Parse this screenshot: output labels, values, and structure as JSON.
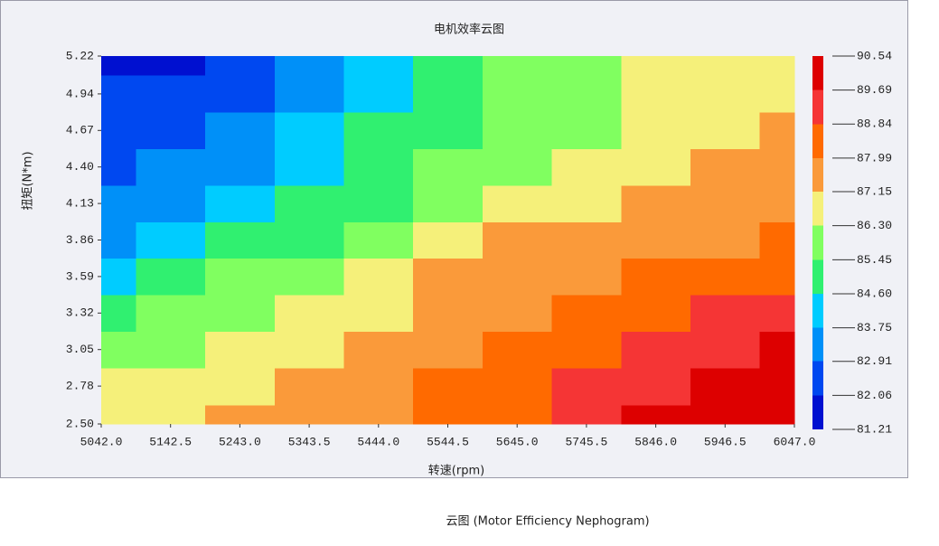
{
  "chart_data": {
    "type": "contour",
    "title": "电机效率云图",
    "xlabel": "转速(rpm)",
    "ylabel": "扭矩(N*m)",
    "x": [
      5042,
      5142.5,
      5243,
      5343.5,
      5444,
      5544.5,
      5645,
      5745.5,
      5846,
      5946.5,
      6047
    ],
    "y": [
      2.5,
      2.78,
      3.05,
      3.32,
      3.59,
      3.86,
      4.13,
      4.4,
      4.67,
      4.94,
      5.22
    ],
    "z": [
      [
        86.9,
        87.0,
        87.2,
        87.5,
        87.8,
        88.2,
        88.6,
        89.1,
        89.7,
        90.0,
        89.9
      ],
      [
        86.4,
        86.7,
        87.0,
        87.3,
        87.6,
        88.0,
        88.4,
        88.9,
        89.3,
        89.9,
        90.1
      ],
      [
        85.6,
        86.1,
        86.6,
        86.9,
        87.3,
        87.6,
        88.0,
        88.4,
        88.9,
        89.3,
        89.8
      ],
      [
        84.9,
        85.5,
        86.0,
        86.5,
        86.9,
        87.4,
        87.7,
        88.1,
        88.5,
        88.9,
        89.3
      ],
      [
        84.2,
        84.7,
        85.5,
        85.9,
        86.5,
        87.2,
        87.4,
        87.7,
        88.0,
        88.3,
        88.6
      ],
      [
        83.5,
        84.0,
        84.7,
        85.2,
        85.8,
        86.5,
        87.2,
        87.4,
        87.6,
        87.9,
        88.1
      ],
      [
        83.0,
        83.5,
        84.0,
        84.7,
        85.2,
        85.9,
        86.5,
        86.8,
        87.2,
        87.5,
        87.8
      ],
      [
        82.7,
        83.1,
        83.6,
        84.2,
        84.9,
        85.6,
        86.0,
        86.4,
        86.9,
        87.3,
        87.5
      ],
      [
        82.5,
        82.8,
        83.2,
        83.9,
        84.7,
        85.2,
        85.7,
        86.2,
        86.6,
        87.0,
        87.3
      ],
      [
        82.1,
        82.4,
        82.8,
        83.3,
        84.0,
        84.9,
        85.7,
        86.1,
        86.5,
        86.8,
        87.0
      ],
      [
        81.6,
        81.7,
        82.5,
        83.3,
        84.2,
        85.0,
        85.9,
        86.0,
        86.6,
        86.7,
        86.9
      ]
    ],
    "xlim": [
      5042,
      6047
    ],
    "ylim": [
      2.5,
      5.22
    ],
    "xticks": [
      {
        "value": 5042,
        "label": "5042.0"
      },
      5142.5,
      {
        "value": 5243,
        "label": "5243.0"
      },
      5343.5,
      {
        "value": 5444,
        "label": "5444.0"
      },
      5544.5,
      {
        "value": 5645,
        "label": "5645.0"
      },
      5745.5,
      {
        "value": 5846,
        "label": "5846.0"
      },
      5946.5,
      {
        "value": 6047,
        "label": "6047.0"
      }
    ],
    "yticks": [
      {
        "value": 2.5,
        "label": "2.50"
      },
      2.78,
      3.05,
      3.32,
      3.59,
      3.86,
      4.13,
      {
        "value": 4.4,
        "label": "4.40"
      },
      4.67,
      4.94,
      5.22
    ],
    "levels": [
      81.21,
      82.06,
      82.91,
      83.75,
      {
        "value": 84.6,
        "label": "84.60"
      },
      85.45,
      {
        "value": 86.3,
        "label": "86.30"
      },
      87.15,
      87.99,
      88.84,
      89.69,
      90.54
    ],
    "colors": [
      "#0010d0",
      "#0048f0",
      "#0090f8",
      "#00ccff",
      "#30f070",
      "#80ff60",
      "#f5f07a",
      "#fa9a3a",
      "#ff6a00",
      "#f53535",
      "#dd0000"
    ]
  },
  "caption": "云图 (Motor Efficiency Nephogram)"
}
